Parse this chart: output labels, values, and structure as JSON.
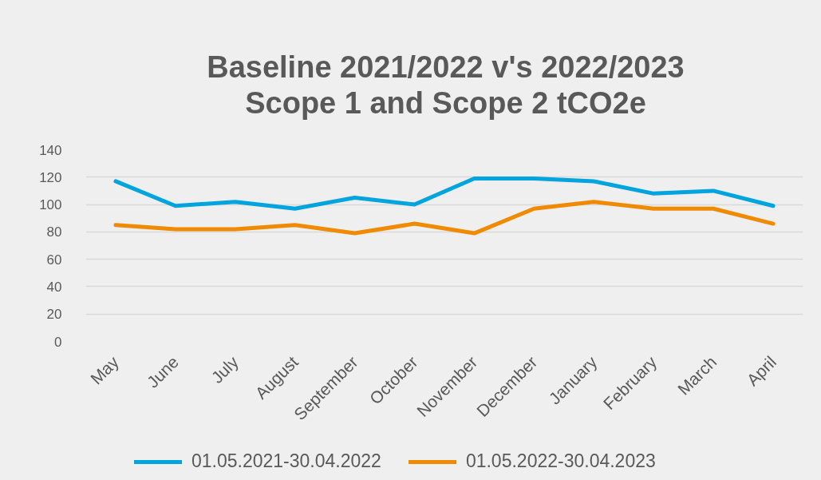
{
  "chart_data": {
    "type": "line",
    "title": "Baseline 2021/2022 v's 2022/2023\nScope 1 and Scope 2 tCO2e",
    "categories": [
      "May",
      "June",
      "July",
      "August",
      "September",
      "October",
      "November",
      "December",
      "January",
      "February",
      "March",
      "April"
    ],
    "series": [
      {
        "name": "01.05.2021-30.04.2022",
        "color": "#00a5de",
        "values": [
          117,
          99,
          102,
          97,
          105,
          100,
          119,
          119,
          117,
          108,
          110,
          99
        ]
      },
      {
        "name": "01.05.2022-30.04.2023",
        "color": "#f08b00",
        "values": [
          85,
          82,
          82,
          85,
          79,
          86,
          79,
          97,
          102,
          97,
          97,
          86
        ]
      }
    ],
    "ylim": [
      0,
      140
    ],
    "yticks": [
      0,
      20,
      40,
      60,
      80,
      100,
      120,
      140
    ],
    "grid": "y",
    "legend": "bottom"
  }
}
